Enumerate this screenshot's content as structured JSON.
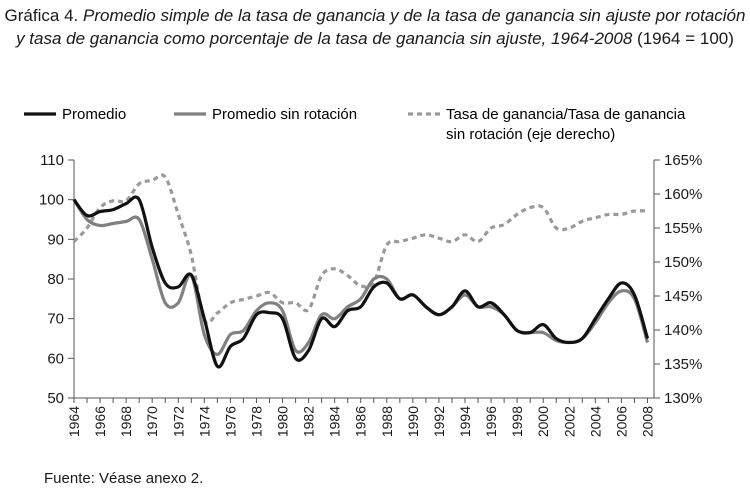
{
  "title": {
    "lead": "Gráfica 4.",
    "main": "Promedio simple de la tasa de ganancia y de la tasa de ganancia sin ajuste por rotación y tasa de ganancia como porcentaje de la tasa de ganancia sin ajuste, 1964-2008",
    "tail": "(1964 = 100)"
  },
  "source": "Fuente: Véase anexo 2.",
  "colors": {
    "promedio": "#111111",
    "sin_rotacion": "#808080",
    "ratio": "#9a9a9a",
    "axis": "#555555"
  },
  "chart_data": {
    "type": "line",
    "x_ticks": [
      "1964",
      "1966",
      "1968",
      "1970",
      "1972",
      "1974",
      "1976",
      "1978",
      "1980",
      "1982",
      "1984",
      "1986",
      "1988",
      "1990",
      "1992",
      "1994",
      "1996",
      "1998",
      "2000",
      "2002",
      "2004",
      "2006",
      "2008"
    ],
    "ylim": [
      50,
      110
    ],
    "y_ticks": [
      "50",
      "60",
      "70",
      "80",
      "90",
      "100",
      "110"
    ],
    "y2lim": [
      130,
      165
    ],
    "y2_ticks": [
      "130%",
      "135%",
      "140%",
      "145%",
      "150%",
      "155%",
      "160%",
      "165%"
    ],
    "legend_position": "top",
    "series": [
      {
        "name": "Promedio",
        "axis": "left",
        "x": [
          1964,
          1965,
          1966,
          1967,
          1968,
          1969,
          1970,
          1971,
          1972,
          1973,
          1974,
          1975,
          1976,
          1977,
          1978,
          1979,
          1980,
          1981,
          1982,
          1983,
          1984,
          1985,
          1986,
          1987,
          1988,
          1989,
          1990,
          1991,
          1992,
          1993,
          1994,
          1995,
          1996,
          1997,
          1998,
          1999,
          2000,
          2001,
          2002,
          2003,
          2004,
          2005,
          2006,
          2007,
          2008
        ],
        "values": [
          100,
          96,
          97,
          97.5,
          99,
          100,
          88,
          79,
          78,
          81,
          70,
          58,
          63,
          65,
          71,
          71.5,
          70,
          60,
          62,
          70,
          68,
          72,
          73,
          78,
          79,
          75,
          76,
          73,
          71,
          73,
          77,
          73,
          74,
          71,
          67,
          66.5,
          68.5,
          65,
          64,
          65,
          70,
          75,
          79,
          76,
          65
        ]
      },
      {
        "name": "Promedio sin rotación",
        "axis": "left",
        "x": [
          1964,
          1965,
          1966,
          1967,
          1968,
          1969,
          1970,
          1971,
          1972,
          1973,
          1974,
          1975,
          1976,
          1977,
          1978,
          1979,
          1980,
          1981,
          1982,
          1983,
          1984,
          1985,
          1986,
          1987,
          1988,
          1989,
          1990,
          1991,
          1992,
          1993,
          1994,
          1995,
          1996,
          1997,
          1998,
          1999,
          2000,
          2001,
          2002,
          2003,
          2004,
          2005,
          2006,
          2007,
          2008
        ],
        "values": [
          100,
          95,
          93.5,
          94,
          94.5,
          95,
          85,
          74,
          74,
          81,
          66,
          61,
          66,
          67,
          72,
          74,
          72,
          62,
          64,
          71,
          70,
          73,
          75,
          80,
          80,
          75,
          76,
          73,
          71,
          73,
          76,
          73,
          73,
          71,
          67,
          66.5,
          66.5,
          64.5,
          64,
          65,
          69,
          74,
          77,
          75,
          64
        ]
      },
      {
        "name": "Tasa de ganancia/Tasa de ganancia sin rotación (eje derecho)",
        "axis": "right",
        "x": [
          1964,
          1965,
          1966,
          1967,
          1968,
          1969,
          1970,
          1971,
          1972,
          1973,
          1974,
          1975,
          1976,
          1977,
          1978,
          1979,
          1980,
          1981,
          1982,
          1983,
          1984,
          1985,
          1986,
          1987,
          1988,
          1989,
          1990,
          1991,
          1992,
          1993,
          1994,
          1995,
          1996,
          1997,
          1998,
          1999,
          2000,
          2001,
          2002,
          2003,
          2004,
          2005,
          2006,
          2007,
          2008
        ],
        "values": [
          153,
          155,
          158,
          159,
          159,
          161.5,
          162,
          162.5,
          157,
          151,
          141.5,
          142.5,
          144,
          144.5,
          145,
          145.5,
          144,
          144,
          143,
          148,
          149,
          148,
          146.5,
          147,
          152.5,
          153,
          153.5,
          154,
          153.5,
          153,
          154,
          153,
          155,
          155.5,
          157,
          158,
          158,
          155,
          155,
          156,
          156.5,
          157,
          157,
          157.5,
          157.5
        ]
      }
    ]
  }
}
